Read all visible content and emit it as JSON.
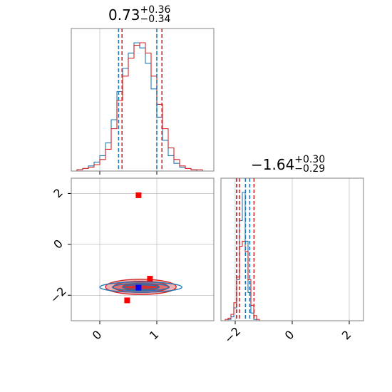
{
  "colors": {
    "series_a": "#1f77b4",
    "series_b": "#d62728",
    "marker_red": "#ff0000",
    "marker_blue": "#0000ff",
    "grid": "#b0b0b0",
    "frame": "#808080"
  },
  "titles": {
    "param1": {
      "value": "0.73",
      "plus": "+0.36",
      "minus": "−0.34"
    },
    "param2": {
      "value": "−1.64",
      "plus": "+0.30",
      "minus": "−0.29"
    }
  },
  "chart_data": [
    {
      "type": "histogram",
      "panel": "top-left",
      "parameter": "param1",
      "xlim": [
        -0.5,
        2.0
      ],
      "x": [
        -0.45,
        -0.35,
        -0.25,
        -0.15,
        -0.05,
        0.05,
        0.15,
        0.25,
        0.35,
        0.45,
        0.55,
        0.65,
        0.75,
        0.85,
        0.95,
        1.05,
        1.15,
        1.25,
        1.35,
        1.45,
        1.55,
        1.65,
        1.75,
        1.85,
        1.95
      ],
      "series": [
        {
          "color": "#1f77b4",
          "values": [
            0,
            1,
            2,
            4,
            7,
            12,
            22,
            40,
            62,
            80,
            92,
            100,
            96,
            84,
            64,
            42,
            24,
            12,
            6,
            3,
            2,
            1,
            0,
            0,
            0
          ]
        },
        {
          "color": "#d62728",
          "values": [
            0,
            1,
            2,
            3,
            5,
            9,
            17,
            33,
            55,
            74,
            88,
            98,
            100,
            92,
            74,
            52,
            33,
            18,
            9,
            4,
            2,
            1,
            1,
            0,
            0
          ]
        }
      ],
      "quantile_lines": {
        "#1f77b4": [
          0.33,
          0.73,
          1.0
        ],
        "#d62728": [
          0.39,
          0.73,
          1.09
        ]
      },
      "visible_quantile_lines": {
        "#1f77b4": [
          0.33,
          1.0
        ],
        "#d62728": [
          0.39,
          1.09
        ]
      },
      "xticks": [
        0,
        1
      ],
      "grid": true
    },
    {
      "type": "histogram",
      "panel": "bottom-right",
      "parameter": "param2",
      "xlim": [
        -2.5,
        2.5
      ],
      "xticks": [
        -2,
        0,
        2
      ],
      "xtick_labels": [
        "−2",
        "0",
        "2"
      ],
      "x": [
        -2.4,
        -2.3,
        -2.2,
        -2.1,
        -2.0,
        -1.9,
        -1.8,
        -1.7,
        -1.6,
        -1.5,
        -1.4,
        -1.3,
        -1.2,
        -1.1
      ],
      "series": [
        {
          "color": "#1f77b4",
          "values": [
            0,
            0,
            1,
            3,
            10,
            32,
            78,
            100,
            62,
            22,
            6,
            1,
            0,
            0
          ]
        },
        {
          "color": "#d62728",
          "values": [
            0,
            1,
            2,
            5,
            14,
            34,
            58,
            62,
            54,
            32,
            12,
            4,
            1,
            0
          ]
        }
      ],
      "visible_quantile_lines": {
        "#1f77b4": [
          -1.95,
          -1.64,
          -1.49
        ],
        "#d62728": [
          -1.95,
          -1.85,
          -1.34
        ]
      },
      "grid": true
    },
    {
      "type": "contour",
      "panel": "bottom-left",
      "xlim": [
        -0.5,
        2.0
      ],
      "ylim": [
        -3.0,
        2.6
      ],
      "xticks": [
        0,
        1
      ],
      "yticks": [
        -2,
        0,
        2
      ],
      "ytick_labels": [
        "−2",
        "0",
        "2"
      ],
      "contours": [
        {
          "color": "#d62728",
          "levels": [
            {
              "cx": 0.72,
              "cy": -1.67,
              "rx": 0.62,
              "ry": 0.3,
              "fill": "#e9a3a4"
            },
            {
              "cx": 0.72,
              "cy": -1.67,
              "rx": 0.48,
              "ry": 0.22,
              "fill": "#e06566"
            },
            {
              "cx": 0.72,
              "cy": -1.67,
              "rx": 0.32,
              "ry": 0.14,
              "fill": "#d62728"
            }
          ]
        },
        {
          "color": "#1f77b4",
          "levels": [
            {
              "cx": 0.72,
              "cy": -1.68,
              "rx": 0.72,
              "ry": 0.2
            },
            {
              "cx": 0.72,
              "cy": -1.68,
              "rx": 0.5,
              "ry": 0.14
            },
            {
              "cx": 0.72,
              "cy": -1.68,
              "rx": 0.32,
              "ry": 0.09
            }
          ]
        }
      ],
      "markers": [
        {
          "x": 0.68,
          "y": 1.93,
          "color": "#ff0000"
        },
        {
          "x": 0.88,
          "y": -1.35,
          "color": "#ff0000"
        },
        {
          "x": 0.48,
          "y": -2.2,
          "color": "#ff0000"
        },
        {
          "x": 0.68,
          "y": -1.7,
          "color": "#0000ff"
        }
      ],
      "grid": true
    }
  ]
}
